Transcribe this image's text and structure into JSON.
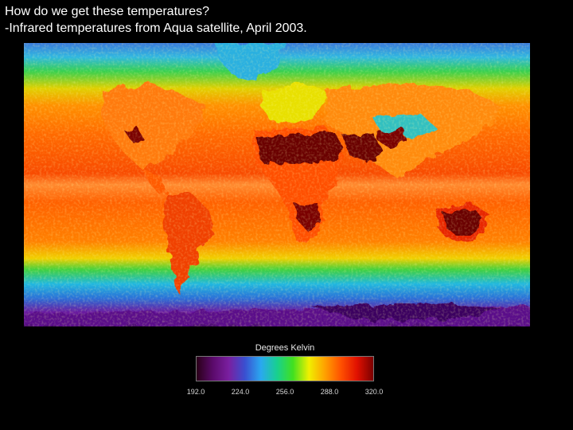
{
  "header": {
    "line1": "How do we get these temperatures?",
    "line2": "-Infrared temperatures from Aqua satellite, April 2003."
  },
  "legend": {
    "title": "Degrees Kelvin",
    "ticks": [
      "192.0",
      "224.0",
      "256.0",
      "288.0",
      "320.0"
    ],
    "range": [
      192,
      320
    ],
    "colors": [
      "#2a0018",
      "#5a0a6a",
      "#7a1fa0",
      "#3a4fd0",
      "#2aa8f0",
      "#18d090",
      "#40e020",
      "#f0f000",
      "#ffa000",
      "#ff5000",
      "#e01000",
      "#7a0000"
    ]
  },
  "map": {
    "colors": {
      "polar": "#6a1aa0",
      "cold": "#2a78e0",
      "cool": "#20c0e8",
      "mild": "#40d030",
      "warm": "#f0c000",
      "hot": "#ff6a00",
      "hotter": "#f03000",
      "hottest": "#6a0000"
    }
  }
}
